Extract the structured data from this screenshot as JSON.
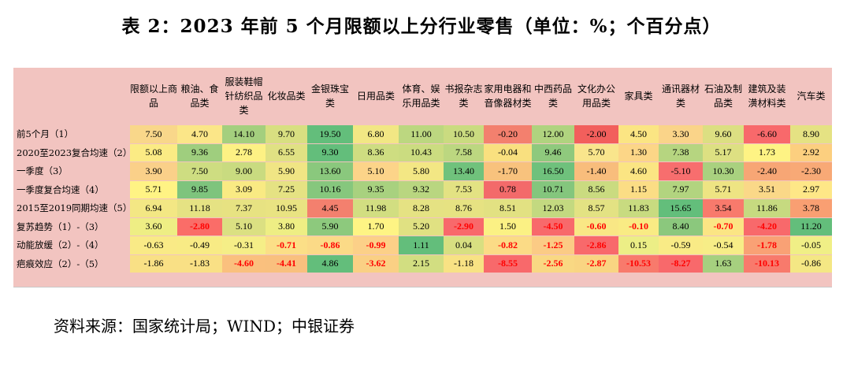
{
  "title": "表 2：2023 年前 5 个月限额以上分行业零售（单位：%；个百分点）",
  "source": "资料来源：国家统计局；WIND；中银证券",
  "table": {
    "columns": [
      "限额以上商品",
      "粮油、食品类",
      "服装鞋帽针纺织品类",
      "化妆品类",
      "金银珠宝类",
      "日用品类",
      "体育、娱乐用品类",
      "书报杂志类",
      "家用电器和音像器材类",
      "中西药品类",
      "文化办公用品类",
      "家具类",
      "通讯器材类",
      "石油及制品类",
      "建筑及装潢材料类",
      "汽车类"
    ],
    "rows": [
      {
        "label": "前5个月（1）",
        "values": [
          "7.50",
          "4.70",
          "14.10",
          "9.70",
          "19.50",
          "6.80",
          "11.00",
          "10.50",
          "-0.20",
          "12.00",
          "-2.00",
          "4.50",
          "3.30",
          "9.60",
          "-6.60",
          "8.90"
        ]
      },
      {
        "label": "2020至2023复合均速（2）",
        "values": [
          "5.08",
          "9.36",
          "2.78",
          "6.55",
          "9.30",
          "8.36",
          "10.43",
          "7.58",
          "-0.04",
          "9.46",
          "5.70",
          "1.30",
          "7.38",
          "5.17",
          "1.73",
          "2.92"
        ]
      },
      {
        "label": "一季度（3）",
        "values": [
          "3.90",
          "7.50",
          "9.00",
          "5.90",
          "13.60",
          "5.10",
          "5.80",
          "13.40",
          "-1.70",
          "16.50",
          "-1.40",
          "4.60",
          "-5.10",
          "10.30",
          "-2.40",
          "-2.30"
        ]
      },
      {
        "label": "一季度复合均速（4）",
        "values": [
          "5.71",
          "9.85",
          "3.09",
          "7.25",
          "10.16",
          "9.35",
          "9.32",
          "7.53",
          "0.78",
          "10.71",
          "8.56",
          "1.15",
          "7.97",
          "5.71",
          "3.51",
          "2.97"
        ]
      },
      {
        "label": "2015至2019同期均速（5）",
        "values": [
          "6.94",
          "11.18",
          "7.37",
          "10.95",
          "4.45",
          "11.98",
          "8.28",
          "8.76",
          "8.51",
          "12.03",
          "8.57",
          "11.83",
          "15.65",
          "3.54",
          "11.86",
          "3.78"
        ]
      },
      {
        "label": "复苏趋势（1）-（3）",
        "values": [
          "3.60",
          "-2.80",
          "5.10",
          "3.80",
          "5.90",
          "1.70",
          "5.20",
          "-2.90",
          "1.50",
          "-4.50",
          "-0.60",
          "-0.10",
          "8.40",
          "-0.70",
          "-4.20",
          "11.20"
        ]
      },
      {
        "label": "动能放缓（2）-（4）",
        "values": [
          "-0.63",
          "-0.49",
          "-0.31",
          "-0.71",
          "-0.86",
          "-0.99",
          "1.11",
          "0.04",
          "-0.82",
          "-1.25",
          "-2.86",
          "0.15",
          "-0.59",
          "-0.54",
          "-1.78",
          "-0.05"
        ]
      },
      {
        "label": "疤痕效应（2）-（5）",
        "values": [
          "-1.86",
          "-1.83",
          "-4.60",
          "-4.41",
          "4.86",
          "-3.62",
          "2.15",
          "-1.18",
          "-8.55",
          "-2.56",
          "-2.87",
          "-10.53",
          "-8.27",
          "1.63",
          "-10.13",
          "-0.86"
        ]
      }
    ],
    "colors": [
      [
        "#f9d78a",
        "#fbe688",
        "#a4cf7e",
        "#d8df81",
        "#63be7b",
        "#f2e784",
        "#bcd780",
        "#cadb80",
        "#f3806e",
        "#b0d37f",
        "#f25f5c",
        "#fbe583",
        "#fad489",
        "#dcdf82",
        "#f8696b",
        "#e5e283"
      ],
      [
        "#fbeb84",
        "#9fce7e",
        "#fdf184",
        "#e0e183",
        "#63be7b",
        "#cedd81",
        "#cbdc80",
        "#bcd780",
        "#f9e07f",
        "#8fc97d",
        "#f9e58c",
        "#fcd687",
        "#b6d580",
        "#dde082",
        "#fef384",
        "#fccf7f"
      ],
      [
        "#fad089",
        "#cedd81",
        "#c9db80",
        "#f0e584",
        "#8ac87d",
        "#fcd489",
        "#f3e784",
        "#70c27c",
        "#f8c27d",
        "#6fc17c",
        "#f8bd7c",
        "#fbe583",
        "#f76e6e",
        "#a9d17f",
        "#f7a675",
        "#f8a976"
      ],
      [
        "#fff384",
        "#7ec47d",
        "#f9ea83",
        "#e5e283",
        "#86c77d",
        "#a8d17f",
        "#b9d680",
        "#e3e283",
        "#f36a6a",
        "#84c67d",
        "#cadb80",
        "#fbdd85",
        "#b2d47f",
        "#eee483",
        "#fad888",
        "#fee787"
      ],
      [
        "#f3e784",
        "#e5e283",
        "#e7e282",
        "#e9e382",
        "#f3806e",
        "#d2de81",
        "#e5e283",
        "#e6e282",
        "#e2e182",
        "#c3d980",
        "#e3e283",
        "#c8db80",
        "#63be7b",
        "#f87a6c",
        "#c6da80",
        "#f99f72"
      ],
      [
        "#eeee84",
        "#fa6d68",
        "#dbe082",
        "#eeee84",
        "#8dc97d",
        "#fef484",
        "#e0e182",
        "#f8696b",
        "#fbf184",
        "#f8696b",
        "#f9e785",
        "#f9eb84",
        "#8bc87d",
        "#fbe584",
        "#f8696b",
        "#63be7b"
      ],
      [
        "#f9ea86",
        "#f8eb85",
        "#f5ee87",
        "#fbdf87",
        "#fbda87",
        "#fcd088",
        "#63be7b",
        "#d8df81",
        "#fbdb86",
        "#fbcb85",
        "#f8696b",
        "#ecee86",
        "#f9eb86",
        "#f7ed87",
        "#f9a175",
        "#f0ef86"
      ],
      [
        "#f9e085",
        "#f9e085",
        "#fac07e",
        "#f9c07e",
        "#63be7b",
        "#fad084",
        "#d2de81",
        "#f8e284",
        "#f8696b",
        "#f9d883",
        "#f9d582",
        "#f87a6c",
        "#f8696b",
        "#a6d07f",
        "#f87a6c",
        "#f4e784"
      ]
    ]
  }
}
